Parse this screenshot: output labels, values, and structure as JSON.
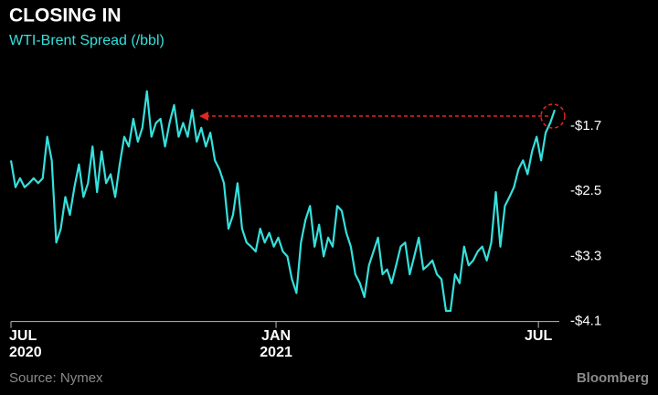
{
  "chart_data": {
    "type": "line",
    "title": "CLOSING IN",
    "subtitle": "WTI-Brent Spread (/bbl)",
    "source": "Source: Nymex",
    "brand": "Bloomberg",
    "series": [
      {
        "name": "WTI-Brent Spread",
        "color": "#35e0dc",
        "values": [
          -2.12,
          -2.45,
          -2.34,
          -2.45,
          -2.4,
          -2.34,
          -2.4,
          -2.34,
          -1.83,
          -2.12,
          -3.13,
          -2.96,
          -2.57,
          -2.79,
          -2.45,
          -2.17,
          -2.57,
          -2.4,
          -1.95,
          -2.51,
          -2.01,
          -2.4,
          -2.29,
          -2.57,
          -2.17,
          -1.83,
          -1.95,
          -1.61,
          -1.89,
          -1.72,
          -1.27,
          -1.83,
          -1.66,
          -1.61,
          -1.95,
          -1.66,
          -1.44,
          -1.83,
          -1.66,
          -1.83,
          -1.5,
          -1.89,
          -1.72,
          -1.95,
          -1.78,
          -2.12,
          -2.23,
          -2.4,
          -2.96,
          -2.79,
          -2.4,
          -2.96,
          -3.13,
          -3.18,
          -3.24,
          -2.96,
          -3.13,
          -3.01,
          -3.18,
          -3.07,
          -3.24,
          -3.3,
          -3.58,
          -3.75,
          -3.13,
          -2.85,
          -2.68,
          -3.18,
          -2.91,
          -3.3,
          -3.07,
          -3.18,
          -2.68,
          -2.74,
          -3.01,
          -3.18,
          -3.52,
          -3.63,
          -3.8,
          -3.41,
          -3.24,
          -3.07,
          -3.52,
          -3.46,
          -3.63,
          -3.41,
          -3.18,
          -3.13,
          -3.52,
          -3.3,
          -3.07,
          -3.46,
          -3.41,
          -3.35,
          -3.52,
          -3.58,
          -3.97,
          -3.97,
          -3.52,
          -3.63,
          -3.18,
          -3.41,
          -3.35,
          -3.24,
          -3.18,
          -3.35,
          -3.13,
          -2.51,
          -3.18,
          -2.68,
          -2.57,
          -2.45,
          -2.23,
          -2.12,
          -2.29,
          -2.01,
          -1.83,
          -2.12,
          -1.78,
          -1.66,
          -1.5
        ]
      }
    ],
    "xlim": [
      0,
      120
    ],
    "xticks": [
      {
        "value": 0,
        "label": "JUL",
        "year": "2020"
      },
      {
        "value": 58.5,
        "label": "JAN",
        "year": "2021"
      },
      {
        "value": 116.4,
        "label": "JUL"
      }
    ],
    "ylim": [
      -4.1,
      -1.1
    ],
    "yticks": [
      {
        "value": -1.7,
        "label": "-$1.7"
      },
      {
        "value": -2.5,
        "label": "-$2.5"
      },
      {
        "value": -3.3,
        "label": "-$3.3"
      },
      {
        "value": -4.1,
        "label": "-$4.1"
      }
    ],
    "grid": false
  }
}
